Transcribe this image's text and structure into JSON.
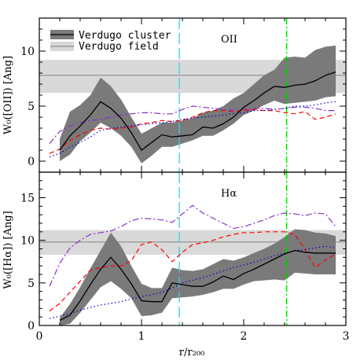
{
  "chart_data": [
    {
      "type": "line",
      "panel_label": "OII",
      "ylabel": "W₀([OII]) [Ang]",
      "xlabel": "",
      "xlim": [
        0,
        3
      ],
      "ylim": [
        -1,
        13
      ],
      "xticks": [
        0,
        1,
        2,
        3
      ],
      "yticks": [
        0,
        5,
        10
      ],
      "yticklabels": [
        "0",
        "5",
        "10"
      ],
      "legend": [
        {
          "label": "Verdugo cluster",
          "style": "dark-band-with-line"
        },
        {
          "label": "Verdugo field",
          "style": "light-band-with-line"
        }
      ],
      "field_band": {
        "low": 6.2,
        "mid": 7.8,
        "high": 9.2
      },
      "vlines": [
        {
          "x": 1.37,
          "color": "#00e5ff",
          "dash": "long-dash"
        },
        {
          "x": 2.42,
          "color": "#00cc00",
          "dash": "dash-dot"
        }
      ],
      "cluster": {
        "x": [
          0.2,
          0.3,
          0.4,
          0.5,
          0.6,
          0.7,
          0.8,
          0.9,
          1.0,
          1.1,
          1.2,
          1.3,
          1.4,
          1.5,
          1.6,
          1.7,
          1.8,
          1.9,
          2.0,
          2.1,
          2.2,
          2.3,
          2.4,
          2.5,
          2.6,
          2.7,
          2.8,
          2.9
        ],
        "y": [
          1.0,
          2.3,
          3.2,
          4.2,
          5.4,
          4.8,
          3.9,
          2.6,
          1.0,
          1.7,
          2.4,
          2.2,
          2.3,
          2.4,
          3.1,
          3.0,
          3.4,
          4.0,
          4.9,
          5.5,
          6.2,
          6.8,
          6.7,
          6.9,
          7.0,
          7.3,
          7.8,
          8.1
        ],
        "lower": [
          0.0,
          0.6,
          1.8,
          2.6,
          3.5,
          3.0,
          2.3,
          1.3,
          -0.2,
          0.5,
          1.3,
          1.3,
          1.6,
          1.9,
          2.3,
          2.3,
          2.8,
          3.4,
          4.2,
          4.6,
          5.1,
          5.5,
          5.2,
          5.3,
          5.4,
          5.5,
          5.8,
          5.9
        ],
        "upper": [
          2.0,
          4.5,
          5.1,
          6.0,
          7.6,
          6.8,
          5.6,
          4.0,
          2.5,
          3.0,
          3.5,
          3.5,
          3.7,
          3.9,
          4.4,
          4.6,
          5.0,
          5.7,
          6.2,
          7.0,
          7.8,
          8.3,
          9.4,
          9.5,
          9.4,
          10.1,
          10.4,
          10.5
        ]
      },
      "series": [
        {
          "color": "#ff0000",
          "dash": "dashed",
          "x": [
            0.1,
            0.2,
            0.3,
            0.4,
            0.5,
            0.6,
            0.7,
            0.8,
            0.9,
            1.0,
            1.1,
            1.2,
            1.3,
            1.4,
            1.5,
            1.6,
            1.7,
            1.8,
            1.9,
            2.0,
            2.1,
            2.2,
            2.3,
            2.4,
            2.5,
            2.6,
            2.7,
            2.8,
            2.9
          ],
          "y": [
            0.7,
            1.1,
            1.9,
            2.4,
            2.8,
            3.0,
            2.9,
            3.0,
            3.1,
            3.4,
            3.5,
            3.7,
            3.6,
            3.7,
            4.0,
            4.4,
            4.6,
            4.6,
            4.5,
            4.6,
            4.7,
            4.6,
            4.6,
            4.4,
            4.3,
            4.5,
            3.8,
            4.0,
            4.3
          ]
        },
        {
          "color": "#0000cc",
          "dash": "dotted",
          "x": [
            0.1,
            0.2,
            0.3,
            0.4,
            0.5,
            0.6,
            0.7,
            0.8,
            0.9,
            1.0,
            1.1,
            1.2,
            1.3,
            1.4,
            1.5,
            1.6,
            1.7,
            1.8,
            1.9,
            2.0,
            2.1,
            2.2,
            2.3,
            2.4,
            2.5,
            2.6,
            2.7,
            2.8,
            2.9
          ],
          "y": [
            0.4,
            0.7,
            1.3,
            1.7,
            2.2,
            2.8,
            3.0,
            3.1,
            3.2,
            3.3,
            3.4,
            3.5,
            3.6,
            3.8,
            3.9,
            4.0,
            4.1,
            4.2,
            4.3,
            4.4,
            4.6,
            4.6,
            4.7,
            4.8,
            5.0,
            5.0,
            5.1,
            5.3,
            5.4
          ]
        },
        {
          "color": "#8833cc",
          "dash": "dash-dot",
          "x": [
            0.1,
            0.2,
            0.3,
            0.4,
            0.5,
            0.6,
            0.7,
            0.8,
            0.9,
            1.0,
            1.1,
            1.2,
            1.3,
            1.4,
            1.5,
            1.6,
            1.7,
            1.8,
            1.9,
            2.0,
            2.1,
            2.2,
            2.3,
            2.4,
            2.5,
            2.6,
            2.7,
            2.8,
            2.9
          ],
          "y": [
            1.6,
            2.7,
            3.2,
            3.5,
            3.7,
            3.8,
            4.0,
            4.2,
            4.3,
            4.4,
            4.4,
            4.3,
            4.3,
            4.7,
            5.0,
            4.9,
            4.8,
            4.7,
            4.6,
            4.7,
            4.8,
            4.8,
            4.7,
            4.8,
            4.9,
            4.9,
            4.8,
            4.6,
            4.6
          ]
        }
      ]
    },
    {
      "type": "line",
      "panel_label": "Hα",
      "ylabel": "W₀([Hα]) [Ang]",
      "xlabel": "r/r₂₀₀",
      "xlim": [
        0,
        3
      ],
      "ylim": [
        0,
        18
      ],
      "xticks": [
        0,
        1,
        2,
        3
      ],
      "yticks": [
        0,
        5,
        10,
        15
      ],
      "yticklabels": [
        "0",
        "5",
        "10",
        "15"
      ],
      "field_band": {
        "low": 8.3,
        "mid": 9.8,
        "high": 11.2
      },
      "vlines": [
        {
          "x": 1.37,
          "color": "#00e5ff",
          "dash": "long-dash"
        },
        {
          "x": 2.42,
          "color": "#00cc00",
          "dash": "dash-dot"
        }
      ],
      "cluster": {
        "x": [
          0.2,
          0.3,
          0.4,
          0.5,
          0.6,
          0.7,
          0.8,
          0.9,
          1.0,
          1.1,
          1.2,
          1.3,
          1.4,
          1.5,
          1.6,
          1.7,
          1.8,
          1.9,
          2.0,
          2.1,
          2.2,
          2.3,
          2.4,
          2.5,
          2.6,
          2.7,
          2.8,
          2.9
        ],
        "y": [
          0.6,
          1.2,
          2.9,
          4.8,
          6.6,
          8.0,
          6.6,
          4.9,
          2.9,
          2.8,
          2.8,
          5.0,
          4.8,
          4.6,
          4.6,
          5.1,
          5.8,
          5.4,
          6.1,
          6.6,
          7.2,
          7.8,
          8.4,
          8.8,
          8.6,
          8.5,
          8.5,
          8.5
        ],
        "lower": [
          0.0,
          0.2,
          1.5,
          3.0,
          4.5,
          5.2,
          4.3,
          3.2,
          1.1,
          1.2,
          1.5,
          3.2,
          3.3,
          3.4,
          3.6,
          3.9,
          4.3,
          4.3,
          4.8,
          5.2,
          5.3,
          5.4,
          5.3,
          6.2,
          6.1,
          6.0,
          6.0,
          6.0
        ],
        "upper": [
          0.9,
          2.5,
          4.5,
          6.7,
          8.8,
          10.9,
          9.3,
          7.0,
          4.9,
          4.4,
          4.4,
          6.8,
          6.5,
          6.4,
          6.6,
          7.2,
          7.8,
          7.6,
          8.0,
          8.5,
          9.0,
          9.6,
          10.4,
          11.3,
          11.2,
          10.9,
          10.8,
          10.5
        ]
      },
      "series": [
        {
          "color": "#ff0000",
          "dash": "dashed",
          "x": [
            0.1,
            0.2,
            0.3,
            0.4,
            0.5,
            0.6,
            0.7,
            0.8,
            0.9,
            1.0,
            1.1,
            1.2,
            1.3,
            1.4,
            1.5,
            1.6,
            1.7,
            1.8,
            1.9,
            2.0,
            2.1,
            2.2,
            2.3,
            2.4,
            2.5,
            2.6,
            2.7,
            2.8,
            2.9
          ],
          "y": [
            1.7,
            2.6,
            3.9,
            5.2,
            6.5,
            6.8,
            7.0,
            7.0,
            7.6,
            9.5,
            9.8,
            8.9,
            7.5,
            8.6,
            9.5,
            9.7,
            10.0,
            10.4,
            10.7,
            10.9,
            10.9,
            11.0,
            11.0,
            11.0,
            10.7,
            8.9,
            6.8,
            7.7,
            8.4
          ]
        },
        {
          "color": "#0000cc",
          "dash": "dotted",
          "x": [
            0.1,
            0.2,
            0.3,
            0.4,
            0.5,
            0.6,
            0.7,
            0.8,
            0.9,
            1.0,
            1.1,
            1.2,
            1.3,
            1.4,
            1.5,
            1.6,
            1.7,
            1.8,
            1.9,
            2.0,
            2.1,
            2.2,
            2.3,
            2.4,
            2.5,
            2.6,
            2.7,
            2.8,
            2.9
          ],
          "y": [
            0.8,
            1.1,
            1.4,
            1.8,
            2.1,
            2.4,
            2.6,
            2.8,
            3.1,
            3.4,
            3.6,
            3.9,
            4.4,
            5.0,
            5.3,
            5.6,
            6.0,
            6.4,
            6.8,
            7.1,
            7.4,
            7.8,
            8.2,
            8.5,
            8.8,
            8.9,
            9.1,
            9.3,
            9.1
          ]
        },
        {
          "color": "#8833cc",
          "dash": "dash-dot",
          "x": [
            0.1,
            0.2,
            0.3,
            0.4,
            0.5,
            0.6,
            0.7,
            0.8,
            0.9,
            1.0,
            1.1,
            1.2,
            1.3,
            1.4,
            1.5,
            1.6,
            1.7,
            1.8,
            1.9,
            2.0,
            2.1,
            2.2,
            2.3,
            2.4,
            2.5,
            2.6,
            2.7,
            2.8,
            2.9
          ],
          "y": [
            4.6,
            7.3,
            9.1,
            10.0,
            10.7,
            10.9,
            11.1,
            11.6,
            12.3,
            12.6,
            12.5,
            12.4,
            12.1,
            13.1,
            14.1,
            13.2,
            12.6,
            12.0,
            11.4,
            11.6,
            12.0,
            12.4,
            12.9,
            13.2,
            13.1,
            12.9,
            13.2,
            13.1,
            11.6
          ]
        }
      ]
    }
  ]
}
